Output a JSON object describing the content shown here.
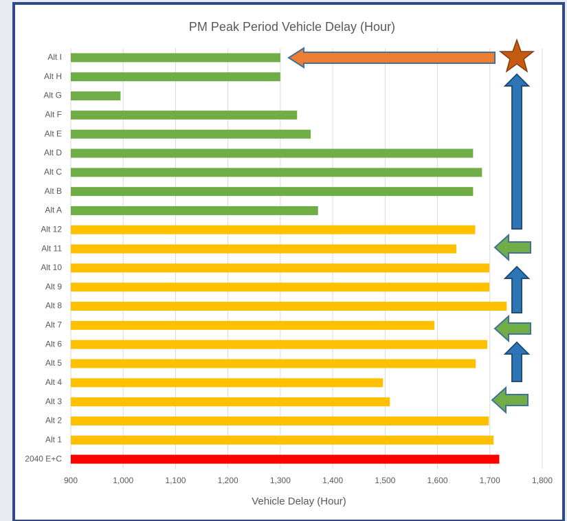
{
  "chart_data": {
    "type": "bar",
    "orientation": "horizontal",
    "title": "PM Peak Period Vehicle Delay (Hour)",
    "xlabel": "Vehicle Delay (Hour)",
    "categories": [
      "Alt I",
      "Alt H",
      "Alt G",
      "Alt F",
      "Alt E",
      "Alt D",
      "Alt C",
      "Alt B",
      "Alt A",
      "Alt 12",
      "Alt 11",
      "Alt 10",
      "Alt 9",
      "Alt 8",
      "Alt 7",
      "Alt 6",
      "Alt 5",
      "Alt 4",
      "Alt 3",
      "Alt 2",
      "Alt 1",
      "2040 E+C"
    ],
    "values": [
      1300,
      1300,
      995,
      1332,
      1358,
      1668,
      1685,
      1668,
      1372,
      1672,
      1636,
      1699,
      1699,
      1732,
      1594,
      1695,
      1673,
      1496,
      1509,
      1698,
      1707,
      1718
    ],
    "colors": [
      "#70ad47",
      "#70ad47",
      "#70ad47",
      "#70ad47",
      "#70ad47",
      "#70ad47",
      "#70ad47",
      "#70ad47",
      "#70ad47",
      "#ffc000",
      "#ffc000",
      "#ffc000",
      "#ffc000",
      "#ffc000",
      "#ffc000",
      "#ffc000",
      "#ffc000",
      "#ffc000",
      "#ffc000",
      "#ffc000",
      "#ffc000",
      "#ff0000"
    ],
    "xlim": [
      900,
      1800
    ],
    "xticks": [
      900,
      {
        "value": 1000,
        "label": "1,000"
      },
      {
        "value": 1100,
        "label": "1,100"
      },
      {
        "value": 1200,
        "label": "1,200"
      },
      {
        "value": 1300,
        "label": "1,300"
      },
      {
        "value": 1400,
        "label": "1,400"
      },
      {
        "value": 1500,
        "label": "1,500"
      },
      {
        "value": 1600,
        "label": "1,600"
      },
      {
        "value": 1700,
        "label": "1,700"
      },
      {
        "value": 1800,
        "label": "1,800"
      }
    ],
    "grid": true
  }
}
